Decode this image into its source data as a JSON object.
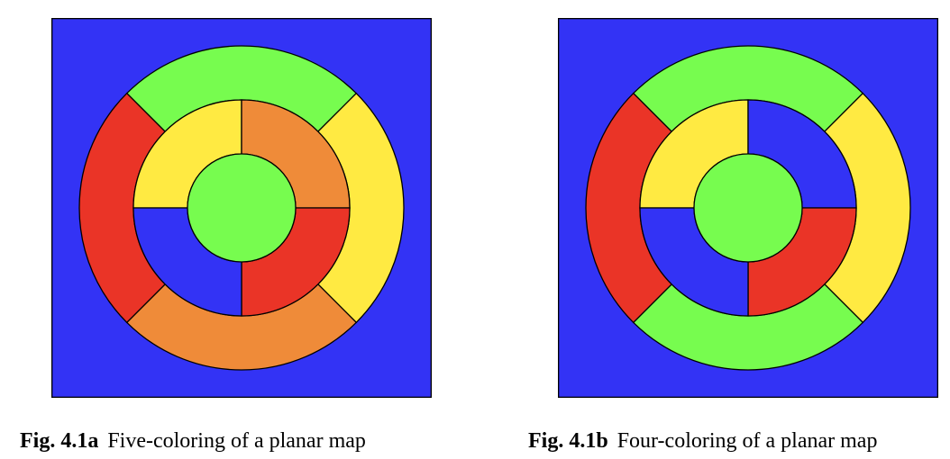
{
  "colors": {
    "blue": "#3333f5",
    "green": "#77fc4f",
    "yellow": "#ffea42",
    "red": "#ea3427",
    "orange": "#ef8b39",
    "outline": "#000000"
  },
  "figures": [
    {
      "id": "fig-a",
      "label": "Fig. 4.1a",
      "title": "Five-coloring of a planar map",
      "regions": {
        "background": "blue",
        "center": "green",
        "outer_ring": {
          "top": "green",
          "right": "yellow",
          "bottom": "orange",
          "left": "red"
        },
        "inner_ring": {
          "top_left": "yellow",
          "top_right": "orange",
          "bottom_right": "red",
          "bottom_left": "blue"
        }
      }
    },
    {
      "id": "fig-b",
      "label": "Fig. 4.1b",
      "title": "Four-coloring of a planar map",
      "regions": {
        "background": "blue",
        "center": "green",
        "outer_ring": {
          "top": "green",
          "right": "yellow",
          "bottom": "green",
          "left": "red"
        },
        "inner_ring": {
          "top_left": "yellow",
          "top_right": "blue",
          "bottom_right": "red",
          "bottom_left": "blue"
        }
      }
    }
  ]
}
